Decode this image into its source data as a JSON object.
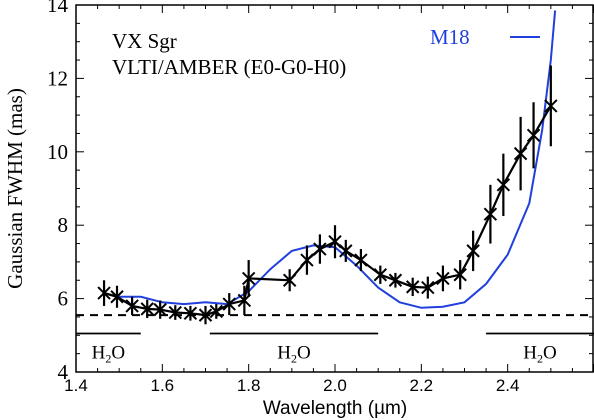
{
  "chart_data": {
    "type": "line",
    "xlabel": "Wavelength (µm)",
    "ylabel": "Gaussian FWHM (mas)",
    "annotations": {
      "line1": "VX Sgr",
      "line2": "VLTI/AMBER (E0-G0-H0)"
    },
    "legend": {
      "label": "M18",
      "position": "top-right",
      "color": "#2040dd"
    },
    "xlim": [
      1.4,
      2.6
    ],
    "ylim": [
      4.0,
      14.0
    ],
    "x_ticks": [
      1.4,
      1.6,
      1.8,
      2.0,
      2.2,
      2.4
    ],
    "y_ticks": [
      4,
      6,
      8,
      10,
      12,
      14
    ],
    "x_tick_labels": [
      "1.4",
      "1.6",
      "1.8",
      "2.0",
      "2.2",
      "2.4"
    ],
    "y_tick_labels": [
      "4",
      "6",
      "8",
      "10",
      "12",
      "14"
    ],
    "series": [
      {
        "kind": "observed",
        "color": "#000000",
        "marker": "x",
        "points": [
          {
            "x": 1.465,
            "y": 6.15,
            "err": 0.35
          },
          {
            "x": 1.495,
            "y": 6.05,
            "err": 0.3
          },
          {
            "x": 1.53,
            "y": 5.8,
            "err": 0.25
          },
          {
            "x": 1.565,
            "y": 5.72,
            "err": 0.25
          },
          {
            "x": 1.595,
            "y": 5.7,
            "err": 0.25
          },
          {
            "x": 1.63,
            "y": 5.62,
            "err": 0.2
          },
          {
            "x": 1.665,
            "y": 5.6,
            "err": 0.2
          },
          {
            "x": 1.7,
            "y": 5.55,
            "err": 0.25
          },
          {
            "x": 1.725,
            "y": 5.65,
            "err": 0.2
          },
          {
            "x": 1.755,
            "y": 5.85,
            "err": 0.3
          },
          {
            "x": 1.79,
            "y": 5.95,
            "err": 0.4
          },
          {
            "x": 1.8,
            "y": 6.55,
            "err": 0.5
          },
          {
            "x": 1.895,
            "y": 6.5,
            "err": 0.3
          },
          {
            "x": 1.935,
            "y": 7.05,
            "err": 0.4
          },
          {
            "x": 1.965,
            "y": 7.35,
            "err": 0.4
          },
          {
            "x": 2.0,
            "y": 7.55,
            "err": 0.45
          },
          {
            "x": 2.025,
            "y": 7.3,
            "err": 0.3
          },
          {
            "x": 2.06,
            "y": 7.05,
            "err": 0.3
          },
          {
            "x": 2.105,
            "y": 6.65,
            "err": 0.25
          },
          {
            "x": 2.14,
            "y": 6.5,
            "err": 0.2
          },
          {
            "x": 2.18,
            "y": 6.32,
            "err": 0.25
          },
          {
            "x": 2.215,
            "y": 6.3,
            "err": 0.3
          },
          {
            "x": 2.25,
            "y": 6.55,
            "err": 0.35
          },
          {
            "x": 2.29,
            "y": 6.65,
            "err": 0.4
          },
          {
            "x": 2.32,
            "y": 7.3,
            "err": 0.55
          },
          {
            "x": 2.36,
            "y": 8.3,
            "err": 0.8
          },
          {
            "x": 2.39,
            "y": 9.1,
            "err": 0.85
          },
          {
            "x": 2.43,
            "y": 9.95,
            "err": 1.0
          },
          {
            "x": 2.46,
            "y": 10.45,
            "err": 0.9
          },
          {
            "x": 2.5,
            "y": 11.25,
            "err": 1.1
          }
        ]
      },
      {
        "name": "M18",
        "kind": "model",
        "color": "#2040dd",
        "points": [
          {
            "x": 1.465,
            "y": 6.15
          },
          {
            "x": 1.5,
            "y": 6.05
          },
          {
            "x": 1.55,
            "y": 6.05
          },
          {
            "x": 1.6,
            "y": 5.9
          },
          {
            "x": 1.65,
            "y": 5.85
          },
          {
            "x": 1.7,
            "y": 5.9
          },
          {
            "x": 1.75,
            "y": 5.85
          },
          {
            "x": 1.8,
            "y": 6.2
          },
          {
            "x": 1.85,
            "y": 6.8
          },
          {
            "x": 1.9,
            "y": 7.3
          },
          {
            "x": 1.95,
            "y": 7.45
          },
          {
            "x": 2.0,
            "y": 7.4
          },
          {
            "x": 2.05,
            "y": 6.9
          },
          {
            "x": 2.1,
            "y": 6.3
          },
          {
            "x": 2.15,
            "y": 5.9
          },
          {
            "x": 2.2,
            "y": 5.75
          },
          {
            "x": 2.25,
            "y": 5.78
          },
          {
            "x": 2.3,
            "y": 5.9
          },
          {
            "x": 2.35,
            "y": 6.4
          },
          {
            "x": 2.4,
            "y": 7.2
          },
          {
            "x": 2.45,
            "y": 8.6
          },
          {
            "x": 2.48,
            "y": 10.6
          },
          {
            "x": 2.5,
            "y": 12.5
          },
          {
            "x": 2.51,
            "y": 13.85
          }
        ]
      }
    ],
    "reference_line": {
      "y": 5.55,
      "style": "dashed",
      "color": "#000000"
    },
    "bands": [
      {
        "label_main": "H",
        "label_sub": "2",
        "label_tail": "O",
        "x_start": 1.4,
        "x_end": 1.55,
        "y": 5.05
      },
      {
        "label_main": "H",
        "label_sub": "2",
        "label_tail": "O",
        "x_start": 1.71,
        "x_end": 2.1,
        "y": 5.05
      },
      {
        "label_main": "H",
        "label_sub": "2",
        "label_tail": "O",
        "x_start": 2.35,
        "x_end": 2.6,
        "y": 5.05
      }
    ],
    "grid": false
  }
}
